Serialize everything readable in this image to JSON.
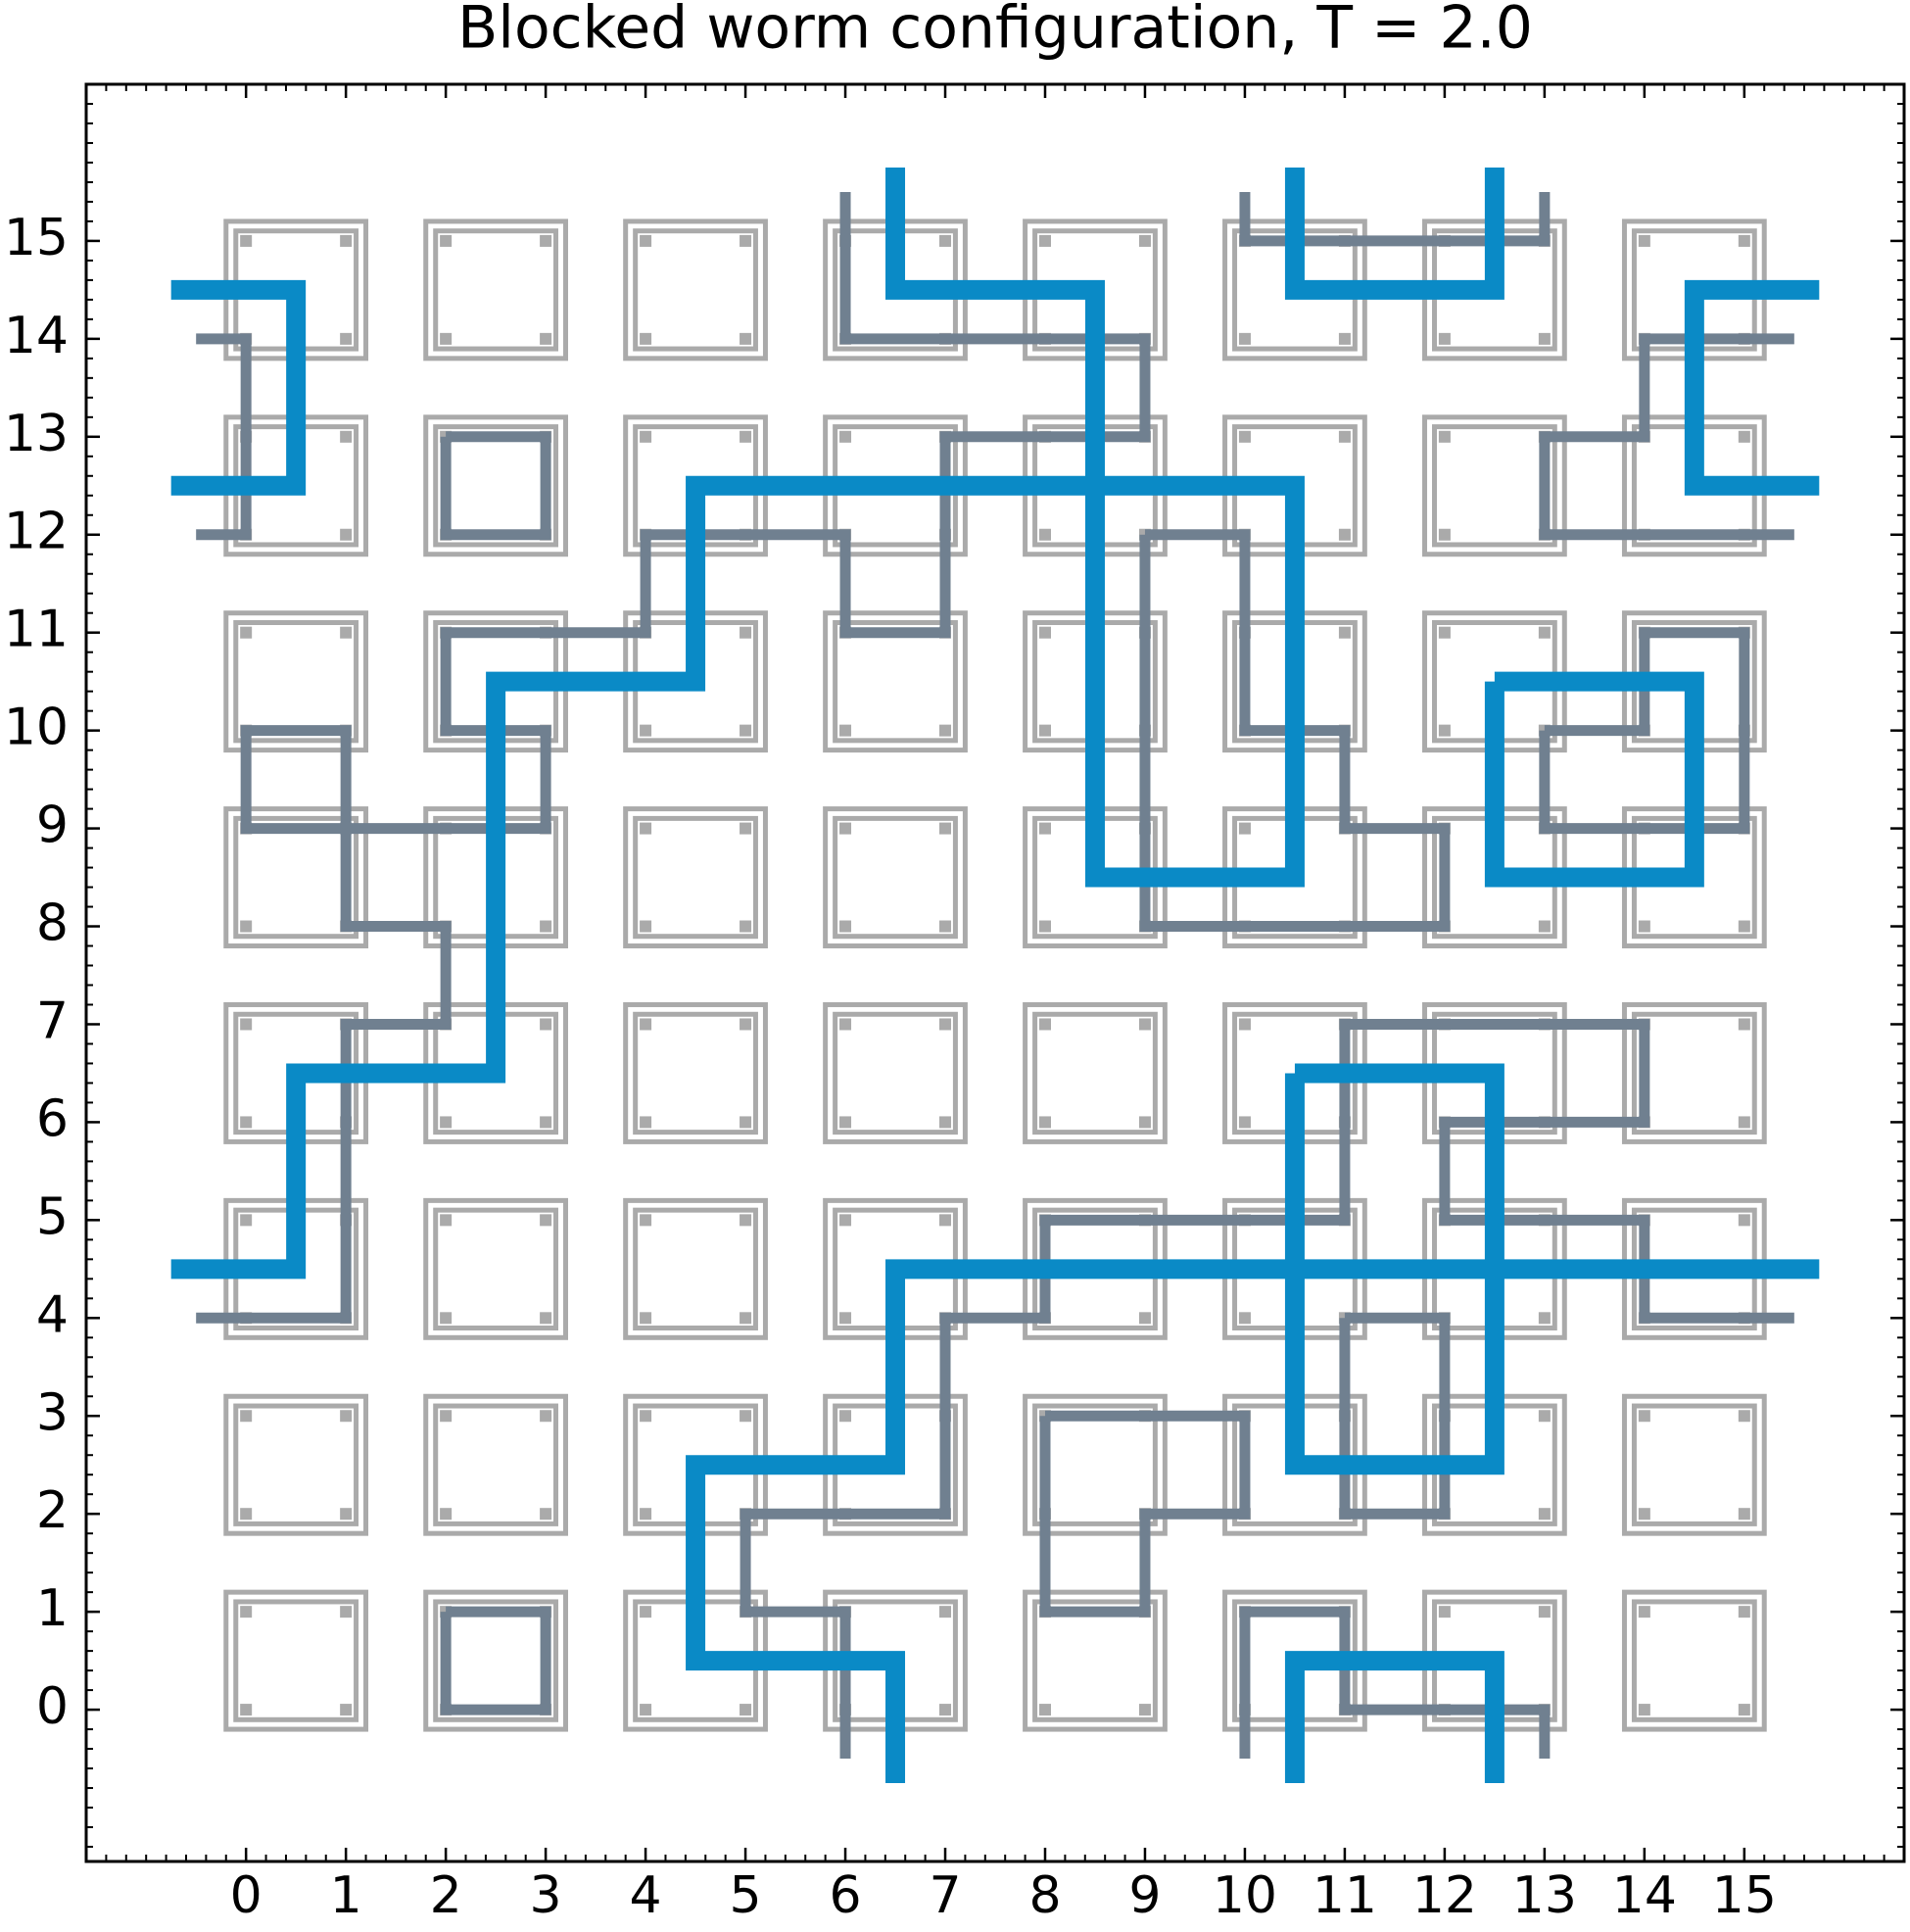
{
  "chart_data": {
    "type": "line",
    "title": "Blocked worm configuration, T = 2.0",
    "xlim": [
      -1.6,
      16.6
    ],
    "ylim": [
      -1.55,
      16.6
    ],
    "xticks": [
      0,
      1,
      2,
      3,
      4,
      5,
      6,
      7,
      8,
      9,
      10,
      11,
      12,
      13,
      14,
      15
    ],
    "yticks": [
      0,
      1,
      2,
      3,
      4,
      5,
      6,
      7,
      8,
      9,
      10,
      11,
      12,
      13,
      14,
      15
    ],
    "series": [
      {
        "color": "#708090",
        "x": [
          2,
          3,
          3,
          2,
          2,
          null,
          2,
          3,
          3,
          2,
          2,
          null,
          -0.5,
          0,
          0,
          -0.5,
          null,
          15.5,
          14,
          14,
          13,
          13,
          15.5,
          null,
          10,
          10,
          13,
          13,
          null,
          10,
          10,
          11,
          11,
          13,
          13,
          null,
          6,
          6,
          9,
          9,
          7,
          7,
          6,
          6,
          4,
          4,
          2,
          2,
          3,
          3,
          0,
          0,
          1,
          1,
          2,
          2,
          1,
          1,
          -0.5,
          null,
          15.5,
          14,
          14,
          12,
          12,
          14,
          14,
          11,
          11,
          8,
          8,
          7,
          7,
          5,
          5,
          6,
          6,
          null,
          9,
          10,
          10,
          11,
          11,
          12,
          12,
          9,
          9,
          null,
          13,
          14,
          14,
          15,
          15,
          13,
          13,
          null,
          8,
          10,
          10,
          9,
          9,
          8,
          8,
          null,
          11,
          12,
          12,
          11,
          11
        ],
        "y": [
          13,
          13,
          12,
          12,
          13,
          null,
          1,
          1,
          0,
          0,
          1,
          null,
          14,
          14,
          12,
          12,
          null,
          14,
          14,
          13,
          13,
          12,
          12,
          null,
          15.5,
          15,
          15,
          15.5,
          null,
          -0.5,
          1,
          1,
          0,
          0,
          -0.5,
          null,
          15.5,
          14,
          14,
          13,
          13,
          11,
          11,
          12,
          12,
          11,
          11,
          10,
          10,
          9,
          9,
          10,
          10,
          8,
          8,
          7,
          7,
          4,
          4,
          null,
          4,
          4,
          5,
          5,
          6,
          6,
          7,
          7,
          5,
          5,
          4,
          4,
          2,
          2,
          1,
          1,
          -0.5,
          null,
          12,
          12,
          10,
          10,
          9,
          9,
          8,
          8,
          12,
          null,
          10,
          10,
          11,
          11,
          9,
          9,
          10,
          null,
          3,
          3,
          2,
          2,
          1,
          1,
          3,
          null,
          4,
          4,
          2,
          2,
          4
        ]
      },
      {
        "color": "#0a8ac6",
        "x": [
          -0.75,
          0.5,
          0.5,
          -0.75,
          null,
          15.75,
          14.5,
          14.5,
          15.75,
          null,
          10.5,
          10.5,
          12.5,
          12.5,
          null,
          10.5,
          10.5,
          12.5,
          12.5,
          null,
          6.5,
          6.5,
          8.5,
          8.5,
          10.5,
          10.5,
          4.5,
          4.5,
          2.5,
          2.5,
          0.5,
          0.5,
          -0.75,
          null,
          15.75,
          6.5,
          6.5,
          4.5,
          4.5,
          6.5,
          6.5,
          null,
          10.5,
          12.5,
          12.5,
          10.5,
          10.5,
          null,
          12.5,
          14.5,
          14.5,
          12.5,
          12.5
        ],
        "y": [
          14.5,
          14.5,
          12.5,
          12.5,
          null,
          14.5,
          14.5,
          12.5,
          12.5,
          null,
          15.75,
          14.5,
          14.5,
          15.75,
          null,
          -0.75,
          0.5,
          0.5,
          -0.75,
          null,
          15.75,
          14.5,
          14.5,
          8.5,
          8.5,
          12.5,
          12.5,
          10.5,
          10.5,
          6.5,
          6.5,
          4.5,
          4.5,
          null,
          4.5,
          4.5,
          2.5,
          2.5,
          0.5,
          0.5,
          -0.75,
          null,
          6.5,
          6.5,
          2.5,
          2.5,
          6.5,
          null,
          10.5,
          10.5,
          8.5,
          8.5,
          10.5
        ]
      }
    ]
  }
}
